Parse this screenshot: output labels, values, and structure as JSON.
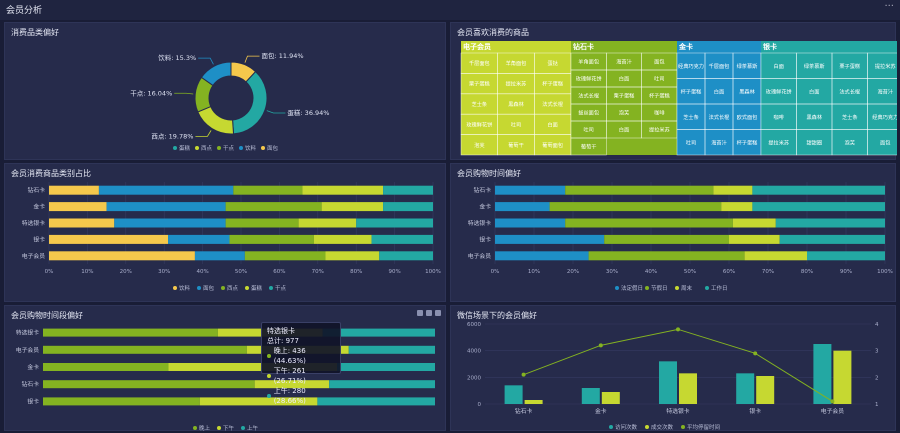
{
  "header": {
    "title": "会员分析",
    "menu_icon": "more-icon",
    "menu_glyph": "···"
  },
  "panels": {
    "p1": {
      "title": "消费品类偏好"
    },
    "p2": {
      "title": "会员喜欢消费的商品"
    },
    "p3": {
      "title": "会员消费商品类别占比"
    },
    "p4": {
      "title": "会员购物时间偏好"
    },
    "p5": {
      "title": "会员购物时间段偏好"
    },
    "p6": {
      "title": "微信场景下的会员偏好"
    }
  },
  "colors": {
    "yellow": "#f5c84c",
    "blue": "#1e8fc6",
    "green": "#84b321",
    "lime": "#c6d831",
    "teal": "#23a8a3"
  },
  "chart_data": [
    {
      "id": "donut",
      "type": "pie",
      "title": "消费品类偏好",
      "slices": [
        {
          "name": "面包",
          "label": "面包: 11.94%",
          "value": 11.94,
          "color": "#f5c84c"
        },
        {
          "name": "蛋糕",
          "label": "蛋糕: 36.94%",
          "value": 36.94,
          "color": "#23a8a3"
        },
        {
          "name": "西点",
          "label": "西点: 19.78%",
          "value": 19.78,
          "color": "#c6d831"
        },
        {
          "name": "干点",
          "label": "干点: 16.04%",
          "value": 16.04,
          "color": "#84b321"
        },
        {
          "name": "饮料",
          "label": "饮料: 15.3%",
          "value": 15.3,
          "color": "#1e8fc6"
        }
      ],
      "legend": [
        "蛋糕",
        "西点",
        "干点",
        "饮料",
        "面包"
      ]
    },
    {
      "id": "treemap",
      "type": "treemap",
      "title": "会员喜欢消费的商品",
      "groups": [
        {
          "name": "电子会员",
          "color": "#c6d831",
          "items": [
            "千层面包",
            "羊角面包",
            "蛋挞",
            "栗子蛋糕",
            "提拉米苏",
            "杯子蛋糕",
            "芝士条",
            "黑森林",
            "法式长棍",
            "玫瑰鲜花饼",
            "吐司",
            "白面",
            "泡芙",
            "葡萄干",
            "葡萄面包"
          ]
        },
        {
          "name": "钻石卡",
          "color": "#84b321",
          "items": [
            "羊角面包",
            "海苔汁",
            "面包",
            "玫瑰鲜花饼",
            "白面",
            "吐司",
            "法式长棍",
            "栗子蛋糕",
            "杯子蛋糕",
            "拔丝面包",
            "泡芙",
            "咖啡",
            "吐司",
            "白面",
            "提拉米苏",
            "葡萄干"
          ]
        },
        {
          "name": "金卡",
          "color": "#1e8fc6",
          "items": [
            "经典巧克力",
            "千层面包",
            "绿茶慕斯",
            "杯子蛋糕",
            "白面",
            "黑森林",
            "芝士条",
            "法式长棍",
            "欧式面包",
            "吐司",
            "海苔汁",
            "杯子蛋糕"
          ]
        },
        {
          "name": "银卡",
          "color": "#23a8a3",
          "items": [
            "白面",
            "绿茶慕斯",
            "栗子蛋糕",
            "提拉米苏",
            "玫瑰鲜花饼",
            "白面",
            "法式长棍",
            "海苔汁",
            "咖啡",
            "黑森林",
            "芝士条",
            "经典巧克力",
            "提拉米苏",
            "甜甜圈",
            "泡芙",
            "面包"
          ]
        }
      ]
    },
    {
      "id": "stack_category",
      "type": "bar",
      "title": "会员消费商品类别占比",
      "categories": [
        "钻石卡",
        "金卡",
        "特选银卡",
        "银卡",
        "电子会员"
      ],
      "series": [
        {
          "name": "饮料",
          "color": "#f5c84c",
          "values": [
            13,
            15,
            17,
            31,
            38
          ]
        },
        {
          "name": "面包",
          "color": "#1e8fc6",
          "values": [
            35,
            31,
            29,
            16,
            13
          ]
        },
        {
          "name": "西点",
          "color": "#84b321",
          "values": [
            18,
            25,
            19,
            22,
            21
          ]
        },
        {
          "name": "蛋糕",
          "color": "#c6d831",
          "values": [
            21,
            16,
            15,
            15,
            14
          ]
        },
        {
          "name": "干点",
          "color": "#23a8a3",
          "values": [
            13,
            13,
            20,
            16,
            14
          ]
        }
      ],
      "xticks": [
        "0%",
        "10%",
        "20%",
        "30%",
        "40%",
        "50%",
        "60%",
        "70%",
        "80%",
        "90%",
        "100%"
      ]
    },
    {
      "id": "stack_time",
      "type": "bar",
      "title": "会员购物时间偏好",
      "categories": [
        "钻石卡",
        "金卡",
        "特选银卡",
        "银卡",
        "电子会员"
      ],
      "series": [
        {
          "name": "法定假日",
          "color": "#1e8fc6",
          "values": [
            18,
            14,
            18,
            28,
            24
          ]
        },
        {
          "name": "节假日",
          "color": "#84b321",
          "values": [
            38,
            44,
            43,
            32,
            40
          ]
        },
        {
          "name": "周末",
          "color": "#c6d831",
          "values": [
            10,
            8,
            11,
            13,
            16
          ]
        },
        {
          "name": "工作日",
          "color": "#23a8a3",
          "values": [
            34,
            34,
            28,
            27,
            20
          ]
        }
      ],
      "xticks": [
        "0%",
        "10%",
        "20%",
        "30%",
        "40%",
        "50%",
        "60%",
        "70%",
        "80%",
        "90%",
        "100%"
      ]
    },
    {
      "id": "stack_period",
      "type": "bar",
      "title": "会员购物时间段偏好",
      "categories": [
        "特选银卡",
        "电子会员",
        "金卡",
        "钻石卡",
        "银卡"
      ],
      "series": [
        {
          "name": "晚上",
          "color": "#84b321",
          "values": [
            44.63,
            52,
            32,
            54,
            40
          ]
        },
        {
          "name": "下午",
          "color": "#c6d831",
          "values": [
            26.71,
            26,
            43,
            19,
            30
          ]
        },
        {
          "name": "上午",
          "color": "#23a8a3",
          "values": [
            28.66,
            22,
            25,
            27,
            30
          ]
        }
      ],
      "tooltip": {
        "title": "特选银卡",
        "total": "总计: 977",
        "rows": [
          "晚上: 436 (44.63%)",
          "下午: 261 (26.71%)",
          "上午: 280 (28.66%)"
        ]
      }
    },
    {
      "id": "combo",
      "type": "bar",
      "title": "微信场景下的会员偏好",
      "categories": [
        "钻石卡",
        "金卡",
        "特选银卡",
        "银卡",
        "电子会员"
      ],
      "series": [
        {
          "name": "访问次数",
          "color": "#23a8a3",
          "values": [
            1400,
            1200,
            3200,
            2300,
            4500
          ]
        },
        {
          "name": "成交次数",
          "color": "#c6d831",
          "values": [
            300,
            900,
            2300,
            2100,
            4000
          ]
        },
        {
          "name": "平均停留时间",
          "color": "#84b321",
          "type": "line",
          "values": [
            2.1,
            3.2,
            3.8,
            2.9,
            1.1
          ]
        }
      ],
      "yleft": {
        "ticks": [
          "0",
          "2000",
          "4000",
          "6000"
        ],
        "range": [
          0,
          6000
        ]
      },
      "yright": {
        "ticks": [
          "1",
          "2",
          "3",
          "4"
        ],
        "range": [
          1,
          4
        ]
      }
    }
  ]
}
